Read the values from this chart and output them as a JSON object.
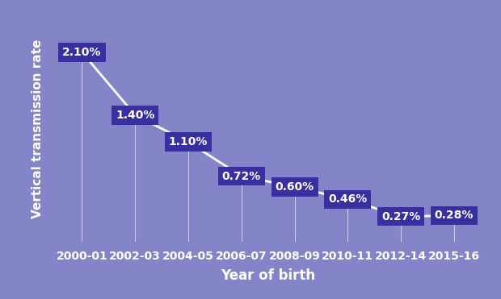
{
  "categories": [
    "2000-01",
    "2002-03",
    "2004-05",
    "2006-07",
    "2008-09",
    "2010-11",
    "2012-14",
    "2015-16"
  ],
  "values": [
    2.1,
    1.4,
    1.1,
    0.72,
    0.6,
    0.46,
    0.27,
    0.28
  ],
  "labels": [
    "2.10%",
    "1.40%",
    "1.10%",
    "0.72%",
    "0.60%",
    "0.46%",
    "0.27%",
    "0.28%"
  ],
  "background_color": "#8484c8",
  "line_color": "white",
  "box_color": "#3a2fa0",
  "text_color": "white",
  "xlabel": "Year of birth",
  "ylabel": "Vertical transmission rate",
  "xlabel_fontsize": 12,
  "ylabel_fontsize": 11,
  "tick_fontsize": 10,
  "label_fontsize": 10,
  "ylim": [
    -0.05,
    2.55
  ]
}
